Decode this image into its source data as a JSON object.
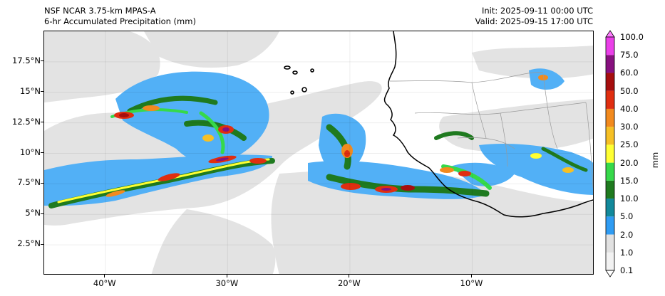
{
  "header": {
    "model": "NSF NCAR 3.75-km MPAS-A",
    "field": "6-hr Accumulated Precipitation (mm)",
    "init": "Init: 2025-09-11 00:00 UTC",
    "valid": "Valid: 2025-09-15 17:00 UTC"
  },
  "map": {
    "lon_range": [
      -45,
      0
    ],
    "lat_range": [
      0,
      20
    ],
    "lat_ticks": [
      {
        "value": 17.5,
        "label": "17.5°N"
      },
      {
        "value": 15,
        "label": "15°N"
      },
      {
        "value": 12.5,
        "label": "12.5°N"
      },
      {
        "value": 10,
        "label": "10°N"
      },
      {
        "value": 7.5,
        "label": "7.5°N"
      },
      {
        "value": 5,
        "label": "5°N"
      },
      {
        "value": 2.5,
        "label": "2.5°N"
      }
    ],
    "lon_ticks": [
      {
        "value": -40,
        "label": "40°W"
      },
      {
        "value": -30,
        "label": "30°W"
      },
      {
        "value": -20,
        "label": "20°W"
      },
      {
        "value": -10,
        "label": "10°W"
      }
    ]
  },
  "colorbar": {
    "title": "mm",
    "levels": [
      "0.1",
      "1.0",
      "2.0",
      "5.0",
      "10.0",
      "15.0",
      "20.0",
      "25.0",
      "30.0",
      "40.0",
      "50.0",
      "60.0",
      "75.0",
      "100.0"
    ],
    "colors": [
      "#f2f2f2",
      "#e1e1e1",
      "#2f9cf3",
      "#12899b",
      "#1f7a1f",
      "#36d94a",
      "#ffff33",
      "#f6c025",
      "#f28a1e",
      "#e02e10",
      "#a60e0e",
      "#87107f",
      "#ea3fe8"
    ],
    "under_color": "#ffffff",
    "over_color": "#ff7bff"
  }
}
